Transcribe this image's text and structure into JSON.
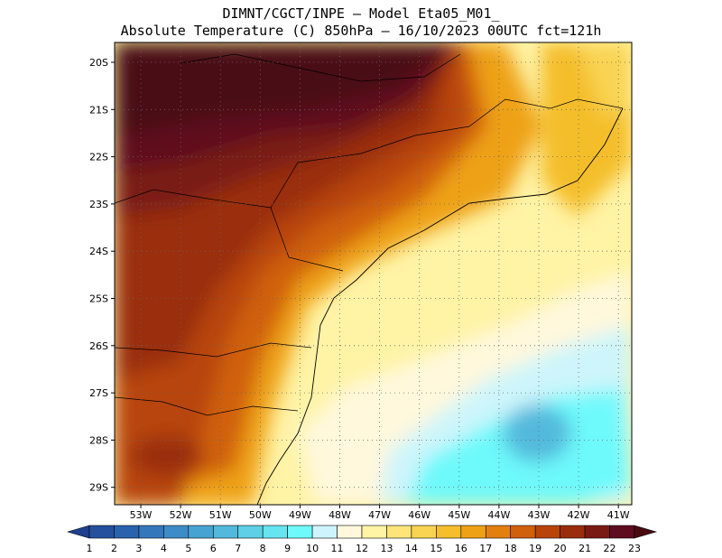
{
  "header": {
    "line1": "DIMNT/CGCT/INPE –  Model Eta05_M01_",
    "line2": "Absolute Temperature (C) 850hPa –  16/10/2023 00UTC fct=121h"
  },
  "map": {
    "lat_labels": [
      "20S",
      "21S",
      "22S",
      "23S",
      "24S",
      "25S",
      "26S",
      "27S",
      "28S",
      "29S"
    ],
    "lon_labels": [
      "53W",
      "52W",
      "51W",
      "50W",
      "49W",
      "48W",
      "47W",
      "46W",
      "45W",
      "44W",
      "43W",
      "42W",
      "41W"
    ]
  },
  "colorbar": {
    "labels": [
      "1",
      "2",
      "3",
      "4",
      "5",
      "6",
      "7",
      "8",
      "9",
      "10",
      "11",
      "12",
      "13",
      "14",
      "15",
      "16",
      "17",
      "18",
      "19",
      "20",
      "21",
      "22",
      "23"
    ],
    "colors": [
      "#1f3f8f",
      "#24509e",
      "#2a63ad",
      "#3477bb",
      "#3e8cc7",
      "#47a3d1",
      "#52b9dc",
      "#5dcfe6",
      "#66e4f0",
      "#6ef9fb",
      "#cdf5fb",
      "#fff8dc",
      "#fff3a6",
      "#fde57a",
      "#f9d452",
      "#f4be2c",
      "#eea116",
      "#e2800f",
      "#d0600c",
      "#b8440a",
      "#9a2d0b",
      "#7a1a14",
      "#5e0c1f",
      "#4a0a12"
    ]
  }
}
